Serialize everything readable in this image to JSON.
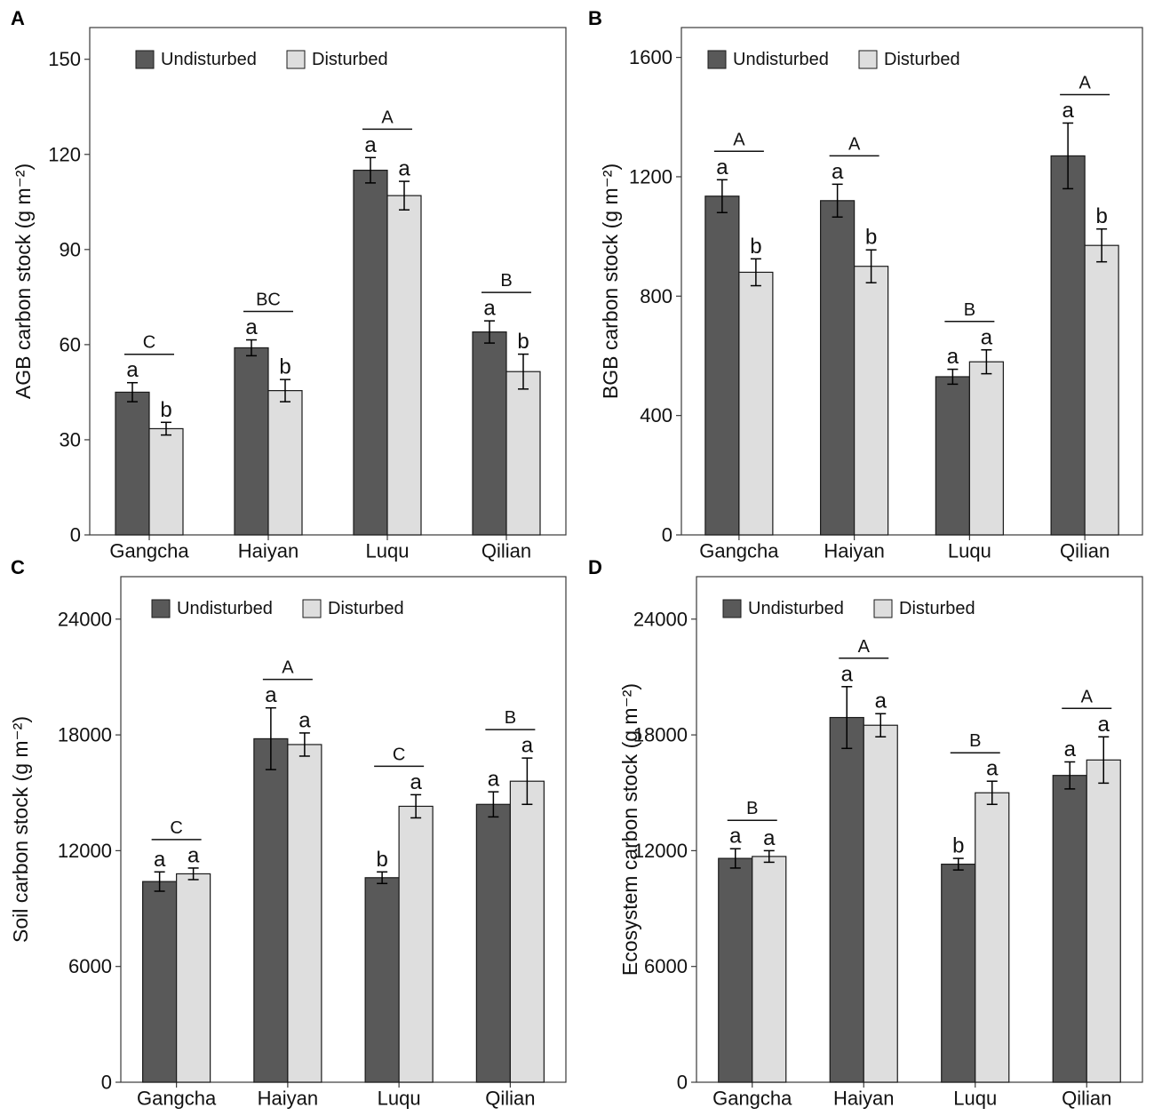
{
  "colors": {
    "undisturbed": "#595959",
    "disturbed": "#dedede",
    "stroke": "#1a1a1a",
    "frame": "#3a3a3a",
    "background": "#ffffff"
  },
  "legend": {
    "undisturbed": "Undisturbed",
    "disturbed": "Disturbed"
  },
  "chart_data": [
    {
      "panel": "A",
      "type": "bar",
      "title": "",
      "xlabel": "",
      "ylabel": "AGB carbon stock (g m⁻²)",
      "ylim": [
        0,
        160
      ],
      "yticks": [
        0,
        30,
        60,
        90,
        120,
        150
      ],
      "yticklabels": [
        "0",
        "30",
        "60",
        "90",
        "120",
        "150"
      ],
      "categories": [
        "Gangcha",
        "Haiyan",
        "Luqu",
        "Qilian"
      ],
      "legend_position": "top-left",
      "series": [
        {
          "name": "Undisturbed",
          "values": [
            45,
            59,
            115,
            64
          ],
          "errors": [
            3,
            2.5,
            4,
            3.5
          ],
          "letters": [
            "a",
            "a",
            "a",
            "a"
          ]
        },
        {
          "name": "Disturbed",
          "values": [
            33.5,
            45.5,
            107,
            51.5
          ],
          "errors": [
            2,
            3.5,
            4.5,
            5.5
          ],
          "letters": [
            "b",
            "b",
            "a",
            "b"
          ]
        }
      ],
      "group_letters": [
        "C",
        "BC",
        "A",
        "B"
      ]
    },
    {
      "panel": "B",
      "type": "bar",
      "title": "",
      "xlabel": "",
      "ylabel": "BGB carbon stock (g m⁻²)",
      "ylim": [
        0,
        1700
      ],
      "yticks": [
        0,
        400,
        800,
        1200,
        1600
      ],
      "yticklabels": [
        "0",
        "400",
        "800",
        "1200",
        "1600"
      ],
      "categories": [
        "Gangcha",
        "Haiyan",
        "Luqu",
        "Qilian"
      ],
      "legend_position": "top-left",
      "series": [
        {
          "name": "Undisturbed",
          "values": [
            1135,
            1120,
            530,
            1270
          ],
          "errors": [
            55,
            55,
            25,
            110
          ],
          "letters": [
            "a",
            "a",
            "a",
            "a"
          ]
        },
        {
          "name": "Disturbed",
          "values": [
            880,
            900,
            580,
            970
          ],
          "errors": [
            45,
            55,
            40,
            55
          ],
          "letters": [
            "b",
            "b",
            "a",
            "b"
          ]
        }
      ],
      "group_letters": [
        "A",
        "A",
        "B",
        "A"
      ]
    },
    {
      "panel": "C",
      "type": "bar",
      "title": "",
      "xlabel": "",
      "ylabel": "Soil carbon stock (g m⁻²)",
      "ylim": [
        0,
        26200
      ],
      "yticks": [
        0,
        6000,
        12000,
        18000,
        24000
      ],
      "yticklabels": [
        "0",
        "6000",
        "12000",
        "18000",
        "24000"
      ],
      "categories": [
        "Gangcha",
        "Haiyan",
        "Luqu",
        "Qilian"
      ],
      "legend_position": "top-left",
      "series": [
        {
          "name": "Undisturbed",
          "values": [
            10400,
            17800,
            10600,
            14400
          ],
          "errors": [
            500,
            1600,
            300,
            650
          ],
          "letters": [
            "a",
            "a",
            "b",
            "a"
          ]
        },
        {
          "name": "Disturbed",
          "values": [
            10800,
            17500,
            14300,
            15600
          ],
          "errors": [
            300,
            600,
            600,
            1200
          ],
          "letters": [
            "a",
            "a",
            "a",
            "a"
          ]
        }
      ],
      "group_letters": [
        "C",
        "A",
        "C",
        "B"
      ]
    },
    {
      "panel": "D",
      "type": "bar",
      "title": "",
      "xlabel": "",
      "ylabel": "Ecosystem carbon stock (g m⁻²)",
      "ylim": [
        0,
        26200
      ],
      "yticks": [
        0,
        6000,
        12000,
        18000,
        24000
      ],
      "yticklabels": [
        "0",
        "6000",
        "12000",
        "18000",
        "24000"
      ],
      "categories": [
        "Gangcha",
        "Haiyan",
        "Luqu",
        "Qilian"
      ],
      "legend_position": "top-left",
      "series": [
        {
          "name": "Undisturbed",
          "values": [
            11600,
            18900,
            11300,
            15900
          ],
          "errors": [
            500,
            1600,
            300,
            700
          ],
          "letters": [
            "a",
            "a",
            "b",
            "a"
          ]
        },
        {
          "name": "Disturbed",
          "values": [
            11700,
            18500,
            15000,
            16700
          ],
          "errors": [
            300,
            600,
            600,
            1200
          ],
          "letters": [
            "a",
            "a",
            "a",
            "a"
          ]
        }
      ],
      "group_letters": [
        "B",
        "A",
        "B",
        "A"
      ]
    }
  ]
}
